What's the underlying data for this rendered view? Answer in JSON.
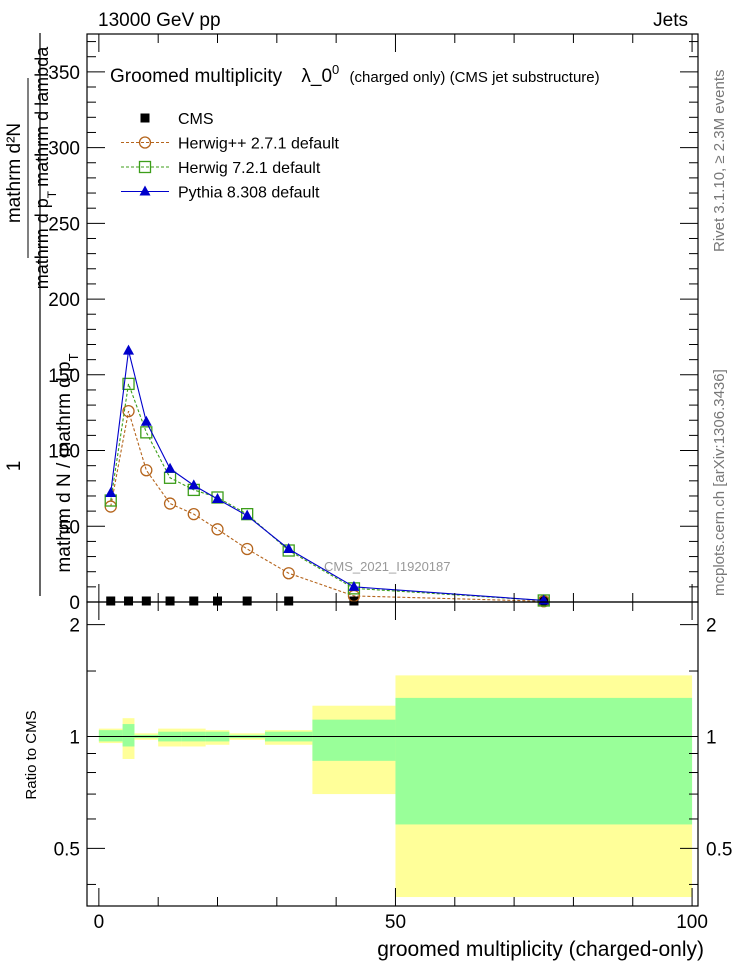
{
  "header": {
    "left": "13000 GeV pp",
    "right": "Jets"
  },
  "side_labels": {
    "rivet": "Rivet 3.1.10, ≥ 2.3M events",
    "mcplots": "mcplots.cern.ch [arXiv:1306.3436]"
  },
  "chart_data": [
    {
      "type": "line",
      "title_main": "Groomed multiplicity",
      "title_lambda": "λ_0",
      "title_sup": "0",
      "title_rest": "(charged only) (CMS jet substructure)",
      "ylabel_prefix": "1",
      "ylabel_den": "mathrm d N / mathrm d p",
      "ylabel_den_sub": "T",
      "ylabel_num": "mathrm d²N",
      "ylabel_num_den": "mathrm d p",
      "ylabel_num_den_sub": "T",
      "ylabel_num_den_rest": "mathrm d lambda",
      "watermark": "CMS_2021_I1920187",
      "xlim": [
        -2,
        101
      ],
      "ylim": [
        0,
        375
      ],
      "yticks": [
        0,
        50,
        100,
        150,
        200,
        250,
        300,
        350
      ],
      "ytick_labels": [
        "0",
        "50",
        "100",
        "150",
        "200",
        "250",
        "300",
        "350"
      ],
      "legend_position": "top-left",
      "series": [
        {
          "name": "CMS",
          "marker": "square",
          "color": "#000000",
          "x": [
            2,
            5,
            8,
            12,
            16,
            20,
            25,
            32,
            43,
            75
          ],
          "y": [
            1,
            1,
            1,
            1,
            1,
            1,
            1,
            1,
            1,
            1
          ]
        },
        {
          "name": "Herwig++ 2.7.1 default",
          "marker": "open-circle",
          "color": "#b5651d",
          "x": [
            2,
            5,
            8,
            12,
            16,
            20,
            25,
            32,
            43,
            75
          ],
          "y": [
            63,
            126,
            87,
            65,
            58,
            48,
            35,
            19,
            4,
            0.5
          ]
        },
        {
          "name": "Herwig 7.2.1 default",
          "marker": "open-square",
          "color": "#3c9e1a",
          "x": [
            2,
            5,
            8,
            12,
            16,
            20,
            25,
            32,
            43,
            75
          ],
          "y": [
            67,
            144,
            112,
            82,
            74,
            69,
            58,
            34,
            9,
            1
          ]
        },
        {
          "name": "Pythia 8.308 default",
          "marker": "filled-triangle",
          "color": "#0000cc",
          "x": [
            2,
            5,
            8,
            12,
            16,
            20,
            25,
            32,
            43,
            75
          ],
          "y": [
            72,
            166,
            119,
            88,
            77,
            68,
            57,
            35,
            10,
            1
          ]
        }
      ]
    },
    {
      "type": "area",
      "ylabel": "Ratio to CMS",
      "xlabel": "groomed multiplicity (charged-only)",
      "xlim": [
        -2,
        101
      ],
      "ylim": [
        0.35,
        2.3
      ],
      "xticks": [
        0,
        50,
        100
      ],
      "xtick_labels": [
        "0",
        "50",
        "100"
      ],
      "yticks": [
        0.5,
        1,
        2
      ],
      "ytick_labels": [
        "0.5",
        "1",
        "2"
      ],
      "reference_line": 1,
      "colors": {
        "inner_band": "#99ff99",
        "outer_band": "#ffff99"
      },
      "bins": [
        {
          "x0": 0,
          "x1": 4,
          "inner": [
            0.97,
            1.04
          ],
          "outer": [
            0.96,
            1.05
          ]
        },
        {
          "x0": 4,
          "x1": 6,
          "inner": [
            0.94,
            1.08
          ],
          "outer": [
            0.87,
            1.12
          ]
        },
        {
          "x0": 6,
          "x1": 10,
          "inner": [
            0.99,
            1.01
          ],
          "outer": [
            0.98,
            1.02
          ]
        },
        {
          "x0": 10,
          "x1": 14,
          "inner": [
            0.97,
            1.03
          ],
          "outer": [
            0.94,
            1.05
          ]
        },
        {
          "x0": 14,
          "x1": 18,
          "inner": [
            0.97,
            1.03
          ],
          "outer": [
            0.94,
            1.05
          ]
        },
        {
          "x0": 18,
          "x1": 22,
          "inner": [
            0.97,
            1.03
          ],
          "outer": [
            0.95,
            1.04
          ]
        },
        {
          "x0": 22,
          "x1": 28,
          "inner": [
            0.99,
            1.01
          ],
          "outer": [
            0.98,
            1.02
          ]
        },
        {
          "x0": 28,
          "x1": 36,
          "inner": [
            0.97,
            1.03
          ],
          "outer": [
            0.95,
            1.04
          ]
        },
        {
          "x0": 36,
          "x1": 50,
          "inner": [
            0.86,
            1.11
          ],
          "outer": [
            0.7,
            1.21
          ]
        },
        {
          "x0": 50,
          "x1": 100,
          "inner": [
            0.58,
            1.27
          ],
          "outer": [
            0.37,
            1.46
          ]
        }
      ]
    }
  ]
}
